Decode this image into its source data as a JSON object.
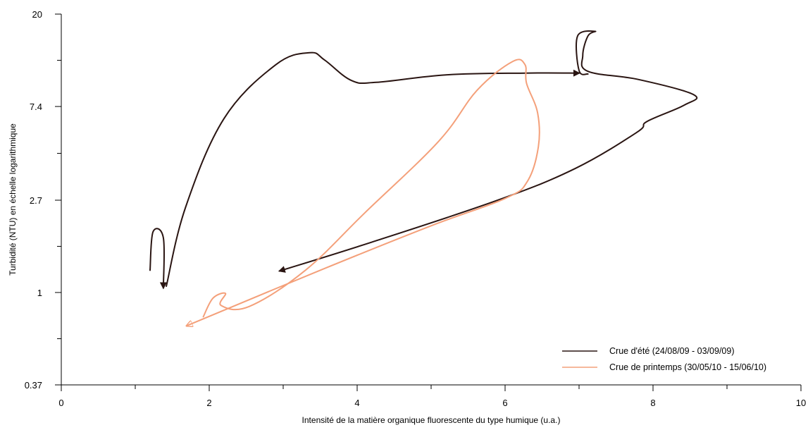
{
  "chart_data": {
    "type": "line",
    "title": "",
    "xlabel": "Intensité de la matière organique fluorescente du type humique (u.a.)",
    "ylabel": "Turbidité (NTU) en échelle logarithmique",
    "xlim": [
      0,
      10
    ],
    "ylim": [
      0.37,
      20
    ],
    "y_scale": "log",
    "x_ticks": [
      "0",
      "2",
      "4",
      "6",
      "8",
      "10"
    ],
    "y_ticks": [
      "0.37",
      "1",
      "2.7",
      "7.4",
      "20"
    ],
    "grid": false,
    "legend_position": "bottom-right",
    "series": [
      {
        "name": "Crue d'été (24/08/09 - 03/09/09)",
        "color": "#2a1512",
        "arrows": "end-of-segments",
        "segments": [
          [
            [
              1.42,
              1.07
            ],
            [
              1.68,
              2.5
            ],
            [
              2.2,
              6.5
            ],
            [
              2.9,
              11.6
            ],
            [
              3.36,
              13.2
            ],
            [
              3.56,
              12.2
            ],
            [
              3.92,
              9.8
            ],
            [
              4.26,
              9.6
            ],
            [
              5.2,
              10.4
            ],
            [
              6.27,
              10.6
            ],
            [
              7.0,
              10.6
            ]
          ],
          [
            [
              7.12,
              10.5
            ],
            [
              7.0,
              10.9
            ],
            [
              6.98,
              15.8
            ],
            [
              7.22,
              16.6
            ],
            [
              7.12,
              15.8
            ],
            [
              7.05,
              12.8
            ],
            [
              7.12,
              10.8
            ],
            [
              7.8,
              9.9
            ],
            [
              8.55,
              8.4
            ],
            [
              8.42,
              7.5
            ],
            [
              7.92,
              6.3
            ],
            [
              7.78,
              5.6
            ],
            [
              6.95,
              3.8
            ],
            [
              5.9,
              2.7
            ],
            [
              4.2,
              1.72
            ],
            [
              2.95,
              1.26
            ]
          ],
          [
            [
              1.2,
              1.27
            ],
            [
              1.24,
              1.92
            ],
            [
              1.38,
              1.8
            ],
            [
              1.38,
              1.05
            ]
          ]
        ]
      },
      {
        "name": "Crue de printemps (30/05/10 - 15/06/10)",
        "color": "#f4a07a",
        "arrows": "end-of-segments",
        "segments": [
          [
            [
              1.92,
              0.77
            ],
            [
              2.05,
              0.94
            ],
            [
              2.22,
              0.99
            ],
            [
              2.16,
              0.87
            ],
            [
              2.54,
              0.86
            ],
            [
              3.3,
              1.27
            ],
            [
              4.1,
              2.35
            ],
            [
              5.1,
              5.08
            ],
            [
              5.62,
              8.8
            ],
            [
              6.1,
              12.0
            ],
            [
              6.27,
              11.6
            ],
            [
              6.29,
              9.5
            ],
            [
              6.44,
              6.9
            ],
            [
              6.45,
              4.8
            ],
            [
              6.3,
              3.3
            ],
            [
              6.0,
              2.75
            ],
            [
              5.0,
              2.05
            ],
            [
              3.5,
              1.27
            ],
            [
              1.7,
              0.7
            ]
          ]
        ]
      }
    ]
  },
  "legend": [
    {
      "label": "Crue d'été (24/08/09 - 03/09/09)",
      "color": "#2a1512"
    },
    {
      "label": "Crue de printemps (30/05/10 - 15/06/10)",
      "color": "#f4a07a"
    }
  ]
}
